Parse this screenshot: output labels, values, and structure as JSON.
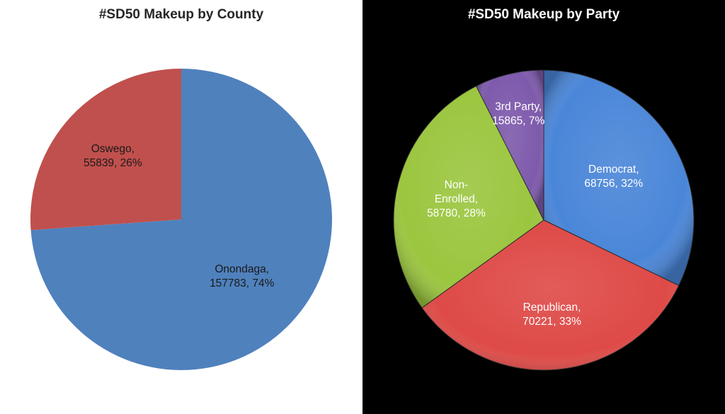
{
  "chart_data": [
    {
      "type": "pie",
      "title": "#SD50 Makeup by County",
      "slices": [
        {
          "name": "Onondaga",
          "value": 157783,
          "percent": "74%",
          "color": "#4f81bd"
        },
        {
          "name": "Oswego",
          "value": 55839,
          "percent": "26%",
          "color": "#c0504d"
        }
      ]
    },
    {
      "type": "pie",
      "title": "#SD50 Makeup by Party",
      "slices": [
        {
          "name": "Democrat",
          "value": 68756,
          "percent": "32%",
          "color": "#4a86d8"
        },
        {
          "name": "Republican",
          "value": 70221,
          "percent": "33%",
          "color": "#de4a47"
        },
        {
          "name": "Non-Enrolled",
          "value": 58780,
          "percent": "28%",
          "color": "#9bc63f"
        },
        {
          "name": "3rd Party",
          "value": 15865,
          "percent": "7%",
          "color": "#7e5aac"
        }
      ]
    }
  ],
  "labels": {
    "county": [
      {
        "lines": [
          "Onondaga,",
          "157783, 74%"
        ]
      },
      {
        "lines": [
          "Oswego,",
          "55839, 26%"
        ]
      }
    ],
    "party": [
      {
        "lines": [
          "Democrat,",
          "68756, 32%"
        ]
      },
      {
        "lines": [
          "Republican,",
          "70221, 33%"
        ]
      },
      {
        "lines": [
          "Non-",
          "Enrolled,",
          "58780, 28%"
        ]
      },
      {
        "lines": [
          "3rd Party,",
          "15865, 7%"
        ]
      }
    ]
  }
}
